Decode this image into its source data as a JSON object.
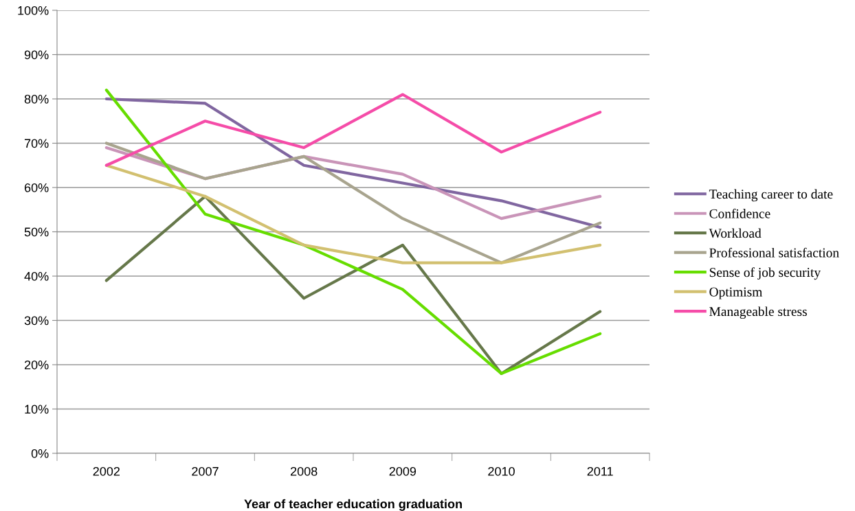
{
  "chart_data": {
    "type": "line",
    "xlabel": "Year of teacher education graduation",
    "categories": [
      "2002",
      "2007",
      "2008",
      "2009",
      "2010",
      "2011"
    ],
    "series": [
      {
        "name": "Teaching career to date",
        "color": "#8066a0",
        "values": [
          80,
          79,
          65,
          61,
          57,
          51
        ]
      },
      {
        "name": "Confidence",
        "color": "#c994b8",
        "values": [
          69,
          62,
          67,
          63,
          53,
          58
        ]
      },
      {
        "name": "Workload",
        "color": "#66784a",
        "values": [
          39,
          58,
          35,
          47,
          18,
          32
        ]
      },
      {
        "name": "Professional satisfaction",
        "color": "#a8a48e",
        "values": [
          70,
          62,
          67,
          53,
          43,
          52
        ]
      },
      {
        "name": "Sense of job security",
        "color": "#66dd00",
        "values": [
          82,
          54,
          47,
          37,
          18,
          27
        ]
      },
      {
        "name": "Optimism",
        "color": "#d2c070",
        "values": [
          65,
          58,
          47,
          43,
          43,
          47
        ]
      },
      {
        "name": "Manageable stress",
        "color": "#f54ca8",
        "values": [
          65,
          75,
          69,
          81,
          68,
          77
        ]
      }
    ],
    "ylim": [
      0,
      100
    ],
    "yticks": [
      {
        "value": 0,
        "label": "0%"
      },
      {
        "value": 10,
        "label": "10%"
      },
      {
        "value": 20,
        "label": "20%"
      },
      {
        "value": 30,
        "label": "30%"
      },
      {
        "value": 40,
        "label": "40%"
      },
      {
        "value": 50,
        "label": "50%"
      },
      {
        "value": 60,
        "label": "60%"
      },
      {
        "value": 70,
        "label": "70%"
      },
      {
        "value": 80,
        "label": "80%"
      },
      {
        "value": 90,
        "label": "90%"
      },
      {
        "value": 100,
        "label": "100%"
      }
    ],
    "grid": "y",
    "legend": "right",
    "marker": "none",
    "line_style": "solid"
  }
}
